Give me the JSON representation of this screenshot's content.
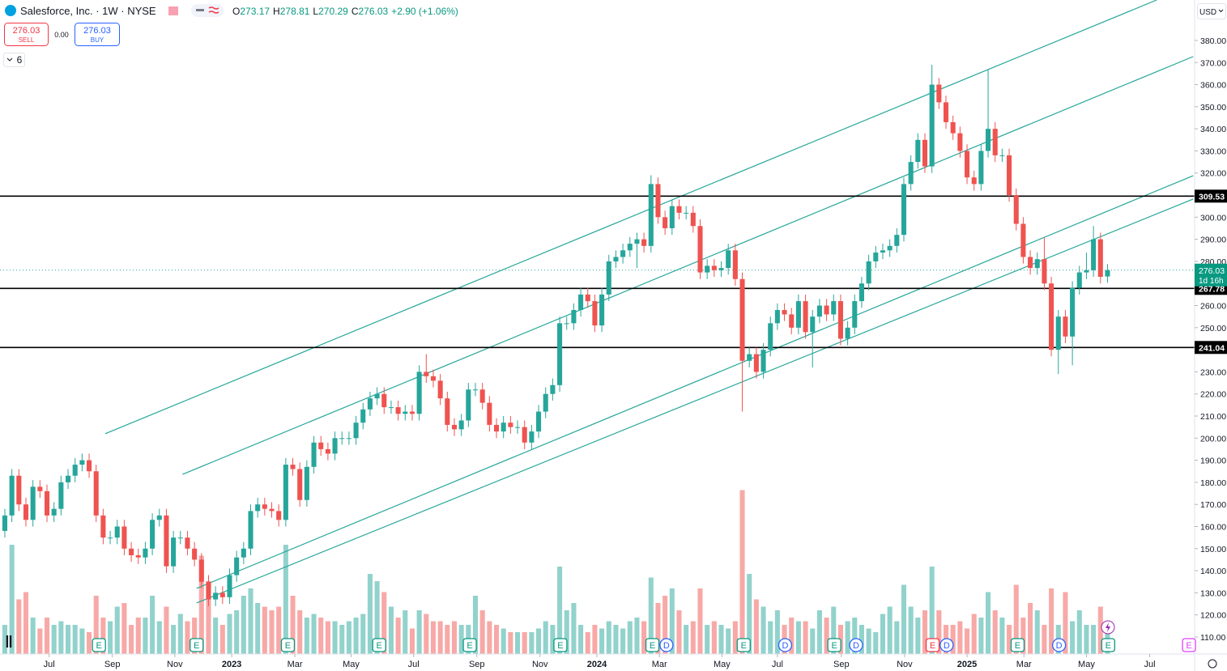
{
  "header": {
    "title": "Salesforce, Inc. · 1W · NYSE",
    "ohlc_labels": [
      "O",
      "H",
      "L",
      "C"
    ],
    "change": "+2.90 (+1.06%)",
    "sell_price": "276.03",
    "sell_label": "SELL",
    "spread": "0.00",
    "buy_price": "276.03",
    "buy_label": "BUY",
    "indicators": "6",
    "currency": "USD",
    "countdown": "1d 16h"
  },
  "chart_data": {
    "type": "candlestick",
    "up_color": "#26a69a",
    "down_color": "#ef5350",
    "open": [
      158,
      165,
      183,
      170,
      163,
      178,
      176,
      165,
      168,
      180,
      183,
      188,
      190,
      185,
      165,
      155,
      155,
      160,
      150,
      147,
      146,
      150,
      163,
      165,
      142,
      155,
      155,
      150,
      145,
      135,
      127,
      130,
      128,
      138,
      146,
      150,
      167,
      170,
      168,
      167,
      163,
      188,
      186,
      172,
      187,
      198,
      195,
      193,
      200,
      200,
      200,
      207,
      213,
      218,
      220,
      214,
      214,
      211,
      212,
      211,
      230,
      228,
      226,
      218,
      206,
      204,
      208,
      222,
      222,
      216,
      206,
      203,
      207,
      205,
      205,
      198,
      203,
      212,
      220,
      224,
      252,
      252,
      258,
      265,
      262,
      251,
      265,
      280,
      282,
      285,
      288,
      290,
      287,
      315,
      300,
      295,
      305,
      302,
      302,
      296,
      275,
      278,
      276,
      277,
      285,
      272,
      235,
      238,
      230,
      240,
      252,
      258,
      256,
      250,
      262,
      248,
      255,
      260,
      256,
      262,
      245,
      250,
      262,
      270,
      280,
      284,
      285,
      287,
      292,
      315,
      325,
      335,
      323,
      360,
      352,
      343,
      338,
      330,
      318,
      315,
      330,
      340,
      328,
      328,
      310,
      297,
      282,
      277,
      281,
      270,
      240,
      255,
      246,
      268,
      275,
      276,
      290,
      273.17
    ],
    "high": [
      168,
      186,
      186,
      173,
      181,
      181,
      179,
      171,
      183,
      186,
      191,
      193,
      193,
      188,
      168,
      158,
      163,
      163,
      153,
      150,
      153,
      166,
      168,
      168,
      158,
      158,
      158,
      153,
      148,
      138,
      133,
      133,
      141,
      149,
      153,
      170,
      173,
      173,
      171,
      170,
      191,
      191,
      189,
      190,
      201,
      201,
      198,
      203,
      203,
      203,
      210,
      216,
      221,
      223,
      223,
      217,
      217,
      215,
      215,
      233,
      238,
      231,
      229,
      221,
      209,
      211,
      225,
      225,
      225,
      219,
      209,
      210,
      210,
      208,
      208,
      206,
      215,
      223,
      227,
      255,
      255,
      261,
      268,
      268,
      265,
      268,
      283,
      285,
      288,
      291,
      293,
      293,
      319,
      318,
      303,
      308,
      308,
      305,
      305,
      299,
      281,
      281,
      280,
      288,
      288,
      275,
      241,
      241,
      243,
      255,
      261,
      261,
      259,
      265,
      265,
      258,
      263,
      263,
      265,
      265,
      253,
      265,
      273,
      283,
      287,
      288,
      290,
      295,
      318,
      328,
      338,
      338,
      369,
      363,
      355,
      346,
      341,
      333,
      321,
      333,
      367,
      343,
      331,
      331,
      313,
      300,
      285,
      284,
      291,
      273,
      258,
      258,
      271,
      278,
      284,
      296,
      293,
      278.81
    ],
    "low": [
      155,
      162,
      167,
      160,
      160,
      173,
      162,
      162,
      165,
      177,
      180,
      185,
      182,
      162,
      152,
      152,
      152,
      147,
      144,
      143,
      143,
      147,
      160,
      139,
      139,
      152,
      147,
      142,
      132,
      124,
      124,
      125,
      125,
      135,
      143,
      147,
      164,
      165,
      164,
      160,
      160,
      183,
      169,
      169,
      184,
      192,
      190,
      190,
      197,
      197,
      197,
      204,
      210,
      215,
      211,
      211,
      208,
      208,
      208,
      208,
      225,
      223,
      215,
      203,
      201,
      201,
      205,
      219,
      213,
      203,
      200,
      200,
      202,
      202,
      195,
      195,
      200,
      209,
      217,
      221,
      249,
      249,
      255,
      259,
      248,
      248,
      262,
      277,
      279,
      282,
      277,
      284,
      284,
      297,
      292,
      292,
      299,
      299,
      293,
      272,
      272,
      273,
      273,
      274,
      269,
      212,
      232,
      227,
      227,
      237,
      249,
      253,
      247,
      247,
      245,
      232,
      252,
      253,
      253,
      242,
      242,
      247,
      259,
      267,
      277,
      281,
      282,
      284,
      289,
      312,
      322,
      320,
      320,
      349,
      340,
      335,
      327,
      315,
      312,
      312,
      327,
      325,
      325,
      307,
      294,
      279,
      274,
      274,
      267,
      237,
      229,
      243,
      233,
      265,
      272,
      273,
      270,
      270.29
    ],
    "close": [
      165,
      183,
      170,
      163,
      178,
      176,
      165,
      168,
      180,
      183,
      188,
      190,
      185,
      165,
      155,
      155,
      160,
      150,
      147,
      146,
      150,
      163,
      165,
      142,
      155,
      155,
      150,
      145,
      135,
      127,
      130,
      128,
      138,
      146,
      150,
      167,
      170,
      168,
      167,
      163,
      188,
      186,
      172,
      187,
      198,
      195,
      193,
      200,
      200,
      200,
      207,
      213,
      218,
      220,
      214,
      214,
      211,
      212,
      211,
      230,
      228,
      226,
      218,
      206,
      204,
      208,
      222,
      222,
      216,
      206,
      203,
      207,
      205,
      205,
      198,
      203,
      212,
      220,
      224,
      252,
      252,
      258,
      265,
      262,
      251,
      265,
      280,
      282,
      285,
      288,
      290,
      287,
      315,
      300,
      295,
      305,
      302,
      302,
      296,
      275,
      278,
      276,
      277,
      285,
      272,
      235,
      238,
      230,
      240,
      252,
      258,
      256,
      250,
      262,
      248,
      255,
      260,
      256,
      262,
      245,
      250,
      262,
      270,
      280,
      284,
      285,
      287,
      292,
      315,
      325,
      335,
      323,
      360,
      352,
      343,
      338,
      330,
      318,
      315,
      330,
      340,
      328,
      328,
      310,
      297,
      282,
      277,
      281,
      270,
      240,
      255,
      246,
      268,
      275,
      276,
      290,
      273,
      276.03
    ],
    "volume": [
      8,
      30,
      15,
      17,
      10,
      7,
      10,
      8,
      9,
      8,
      8,
      7,
      6,
      16,
      10,
      9,
      13,
      14,
      8,
      10,
      10,
      16,
      9,
      13,
      8,
      11,
      9,
      10,
      27,
      20,
      10,
      8,
      11,
      12,
      16,
      18,
      14,
      13,
      12,
      13,
      30,
      16,
      12,
      10,
      11,
      10,
      9,
      9,
      8,
      9,
      10,
      11,
      22,
      20,
      17,
      13,
      10,
      12,
      7,
      12,
      11,
      9,
      9,
      8,
      9,
      8,
      8,
      16,
      12,
      9,
      8,
      7,
      6,
      6,
      6,
      6,
      7,
      9,
      8,
      24,
      12,
      14,
      8,
      6,
      8,
      7,
      9,
      8,
      7,
      9,
      10,
      9,
      21,
      14,
      16,
      18,
      12,
      8,
      9,
      18,
      8,
      9,
      8,
      7,
      9,
      45,
      22,
      15,
      13,
      9,
      12,
      8,
      10,
      9,
      9,
      7,
      12,
      10,
      13,
      8,
      9,
      10,
      8,
      7,
      6,
      11,
      13,
      9,
      19,
      13,
      10,
      12,
      24,
      12,
      8,
      8,
      9,
      7,
      11,
      10,
      17,
      12,
      10,
      8,
      19,
      10,
      14,
      12,
      8,
      18,
      8,
      17,
      9,
      12,
      8,
      8,
      13,
      7
    ],
    "xlim": [
      -0.69,
      169.4
    ],
    "xticks": [
      {
        "value": 6.3,
        "label": "Jul"
      },
      {
        "value": 15.3,
        "label": "Sep"
      },
      {
        "value": 24.2,
        "label": "Nov"
      },
      {
        "value": 32.3,
        "label": "2023"
      },
      {
        "value": 41.3,
        "label": "Mar"
      },
      {
        "value": 49.3,
        "label": "May"
      },
      {
        "value": 58.2,
        "label": "Jul"
      },
      {
        "value": 67.2,
        "label": "Sep"
      },
      {
        "value": 76.2,
        "label": "Nov"
      },
      {
        "value": 84.3,
        "label": "2024"
      },
      {
        "value": 93.2,
        "label": "Mar"
      },
      {
        "value": 102.1,
        "label": "May"
      },
      {
        "value": 110.0,
        "label": "Jul"
      },
      {
        "value": 119.1,
        "label": "Sep"
      },
      {
        "value": 128.1,
        "label": "Nov"
      },
      {
        "value": 137.0,
        "label": "2025"
      },
      {
        "value": 145.1,
        "label": "Mar"
      },
      {
        "value": 154.0,
        "label": "May"
      },
      {
        "value": 163.0,
        "label": "Jul"
      }
    ],
    "ylim": [
      102.3,
      398.3
    ],
    "yticks": [
      {
        "value": 110,
        "label": "110.00"
      },
      {
        "value": 120,
        "label": "120.00"
      },
      {
        "value": 130,
        "label": "130.00"
      },
      {
        "value": 140,
        "label": "140.00"
      },
      {
        "value": 150,
        "label": "150.00"
      },
      {
        "value": 160,
        "label": "160.00"
      },
      {
        "value": 170,
        "label": "170.00"
      },
      {
        "value": 180,
        "label": "180.00"
      },
      {
        "value": 190,
        "label": "190.00"
      },
      {
        "value": 200,
        "label": "200.00"
      },
      {
        "value": 210,
        "label": "210.00"
      },
      {
        "value": 220,
        "label": "220.00"
      },
      {
        "value": 230,
        "label": "230.00"
      },
      {
        "value": 240,
        "label": "240.00"
      },
      {
        "value": 250,
        "label": "250.00"
      },
      {
        "value": 260,
        "label": "260.00"
      },
      {
        "value": 270,
        "label": "270.00"
      },
      {
        "value": 280,
        "label": "280.00"
      },
      {
        "value": 290,
        "label": "290.00"
      },
      {
        "value": 300,
        "label": "300.00"
      },
      {
        "value": 310,
        "label": "310.00"
      },
      {
        "value": 320,
        "label": "320.00"
      },
      {
        "value": 330,
        "label": "330.00"
      },
      {
        "value": 340,
        "label": "340.00"
      },
      {
        "value": 350,
        "label": "350.00"
      },
      {
        "value": 360,
        "label": "360.00"
      },
      {
        "value": 370,
        "label": "370.00"
      },
      {
        "value": 380,
        "label": "380.00"
      }
    ],
    "horizontal_lines": [
      309.53,
      267.78,
      241.04
    ],
    "trend_lines": [
      {
        "start": [
          14.3,
          202.0
        ],
        "end": [
          164.0,
          398.3
        ]
      },
      {
        "start": [
          25.3,
          183.6
        ],
        "end": [
          169.2,
          372.7
        ]
      },
      {
        "start": [
          27.3,
          132.0
        ],
        "end": [
          169.2,
          318.8
        ]
      },
      {
        "start": [
          27.3,
          125.4
        ],
        "end": [
          169.2,
          308.2
        ]
      }
    ],
    "trend_color": "#26a69a",
    "events": [
      {
        "label": "E",
        "x": 13.4,
        "color": "#089981"
      },
      {
        "label": "E",
        "x": 27.3,
        "color": "#089981"
      },
      {
        "label": "E",
        "x": 40.3,
        "color": "#089981"
      },
      {
        "label": "E",
        "x": 53.3,
        "color": "#089981"
      },
      {
        "label": "E",
        "x": 66.2,
        "color": "#089981"
      },
      {
        "label": "E",
        "x": 79.1,
        "color": "#089981"
      },
      {
        "label": "E",
        "x": 92.2,
        "color": "#089981"
      },
      {
        "label": "D",
        "x": 94.2,
        "color": "#2962ff"
      },
      {
        "label": "E",
        "x": 105.2,
        "color": "#089981"
      },
      {
        "label": "D",
        "x": 111.1,
        "color": "#2962ff"
      },
      {
        "label": "E",
        "x": 118.1,
        "color": "#089981"
      },
      {
        "label": "D",
        "x": 121.2,
        "color": "#2962ff"
      },
      {
        "label": "E",
        "x": 132.1,
        "color": "#f23645"
      },
      {
        "label": "D",
        "x": 134.1,
        "color": "#2962ff"
      },
      {
        "label": "E",
        "x": 144.2,
        "color": "#089981"
      },
      {
        "label": "D",
        "x": 150.1,
        "color": "#2962ff"
      },
      {
        "label": "E",
        "x": 157.1,
        "color": "#089981"
      },
      {
        "label": "E",
        "x": 168.6,
        "color": "#e040fb"
      }
    ]
  }
}
